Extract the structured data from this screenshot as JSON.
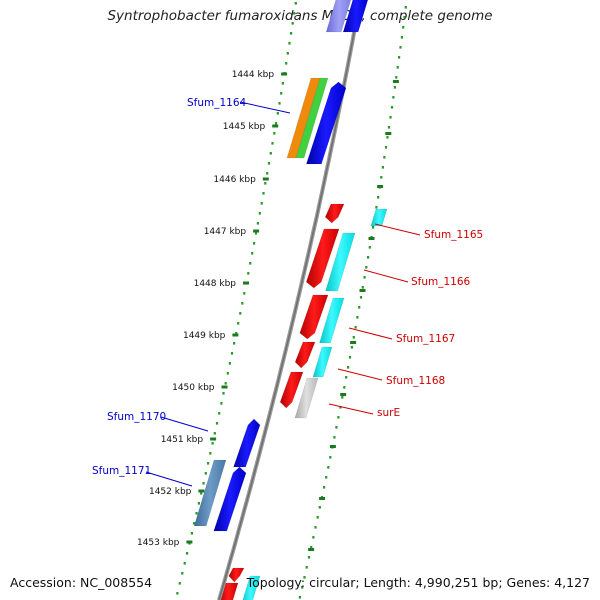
{
  "title": "Syntrophobacter fumaroxidans MPOB, complete genome",
  "footer": {
    "accession": "Accession: NC_008554",
    "topology": "Topology: circular; Length: 4,990,251 bp; Genes: 4,127"
  },
  "colors": {
    "backbone": "#888888",
    "dots": "#2a9a2a",
    "plus_label": "#0000cc",
    "minus_label": "#cc0000"
  },
  "ruler": [
    {
      "label": "1444 kbp"
    },
    {
      "label": "1445 kbp"
    },
    {
      "label": "1446 kbp"
    },
    {
      "label": "1447 kbp"
    },
    {
      "label": "1448 kbp"
    },
    {
      "label": "1449 kbp"
    },
    {
      "label": "1450 kbp"
    },
    {
      "label": "1451 kbp"
    },
    {
      "label": "1452 kbp"
    },
    {
      "label": "1453 kbp"
    }
  ],
  "gene_labels": [
    {
      "name": "Sfum_1164",
      "strand": "plus"
    },
    {
      "name": "Sfum_1165",
      "strand": "minus"
    },
    {
      "name": "Sfum_1166",
      "strand": "minus"
    },
    {
      "name": "Sfum_1167",
      "strand": "minus"
    },
    {
      "name": "Sfum_1168",
      "strand": "minus"
    },
    {
      "name": "surE",
      "strand": "minus"
    },
    {
      "name": "Sfum_1170",
      "strand": "plus"
    },
    {
      "name": "Sfum_1171",
      "strand": "plus"
    }
  ]
}
